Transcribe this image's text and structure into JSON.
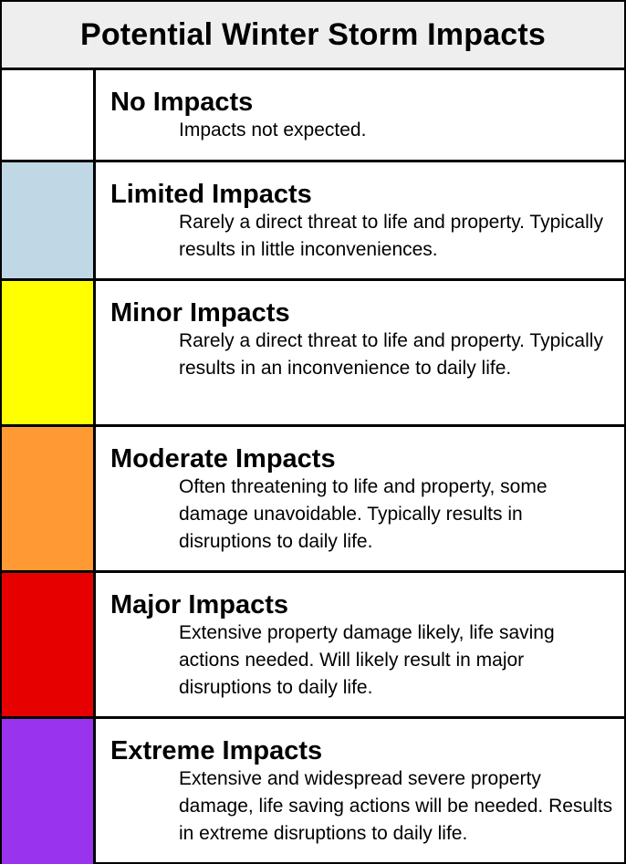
{
  "title": "Potential Winter Storm Impacts",
  "levels": [
    {
      "name": "No Impacts",
      "description": "Impacts not expected.",
      "color": "#ffffff"
    },
    {
      "name": "Limited Impacts",
      "description": "Rarely a direct threat to life and property. Typically results in little inconveniences.",
      "color": "#c0d7e6"
    },
    {
      "name": "Minor Impacts",
      "description": "Rarely a direct threat to life and property. Typically results in an inconvenience to daily life.",
      "color": "#ffff00"
    },
    {
      "name": "Moderate Impacts",
      "description": "Often threatening to life and property, some damage unavoidable. Typically results in disruptions to daily life.",
      "color": "#ff9933"
    },
    {
      "name": "Major Impacts",
      "description": "Extensive property damage likely, life saving actions needed. Will likely result in major disruptions to daily life.",
      "color": "#e60000"
    },
    {
      "name": "Extreme Impacts",
      "description": "Extensive and widespread severe property damage, life saving actions will be needed. Results in extreme disruptions to daily life.",
      "color": "#9933ee"
    }
  ]
}
